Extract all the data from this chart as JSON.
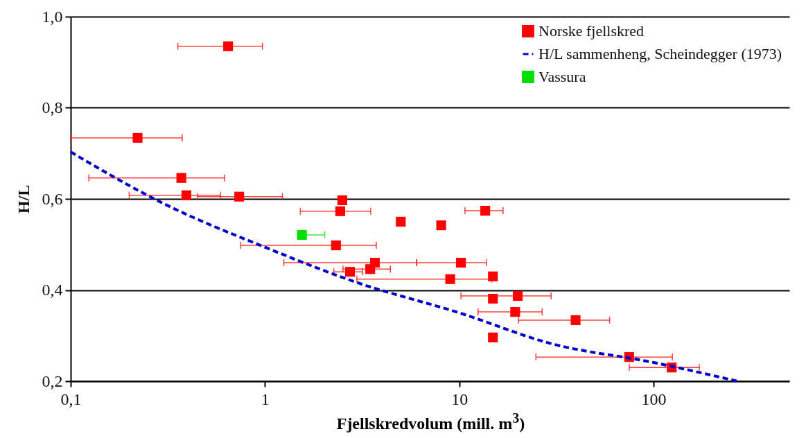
{
  "chart_data": {
    "type": "scatter",
    "xlabel": "Fjellskredvolum (mill. m$^{3}$)",
    "ylabel": "H/L",
    "log": "x",
    "grid": "y",
    "legend": "top right",
    "marker": "square",
    "xlim": [
      0.1,
      500
    ],
    "ylim": [
      0.2,
      1.0
    ],
    "xticks": [
      {
        "value": 0.1,
        "label": "0,1"
      },
      1,
      10,
      100
    ],
    "yticks": [
      {
        "value": 0.2,
        "label": "0,2"
      },
      {
        "value": 0.4,
        "label": "0,4"
      },
      {
        "value": 0.6,
        "label": "0,6"
      },
      {
        "value": 0.8,
        "label": "0,8"
      },
      {
        "value": 1.0,
        "label": "1,0"
      }
    ],
    "series": [
      {
        "name": "Norske fjellskred",
        "color": "#ff0000",
        "x": [
          0.646,
          0.221,
          0.371,
          0.394,
          0.737,
          2.5,
          2.44,
          13.6,
          5.0,
          8.07,
          2.32,
          3.68,
          10.2,
          3.48,
          2.74,
          8.98,
          14.9,
          20.0,
          14.9,
          19.4,
          39.7,
          14.9,
          74.9,
          124
        ],
        "values": [
          0.935,
          0.734,
          0.646,
          0.608,
          0.605,
          0.597,
          0.573,
          0.574,
          0.55,
          0.542,
          0.498,
          0.46,
          0.46,
          0.446,
          0.44,
          0.424,
          0.43,
          0.387,
          0.381,
          0.352,
          0.334,
          0.296,
          0.253,
          0.23
        ],
        "xerrors": [
          [
            0.356,
            0.97
          ],
          [
            0.1,
            0.375
          ],
          [
            0.124,
            0.62
          ],
          [
            0.2,
            0.59
          ],
          [
            0.45,
            1.23
          ],
          null,
          [
            1.52,
            3.5
          ],
          [
            10.7,
            16.8
          ],
          null,
          null,
          [
            0.75,
            3.74
          ],
          [
            1.25,
            6.04
          ],
          [
            6.04,
            13.8
          ],
          [
            2.52,
            4.42
          ],
          [
            2.26,
            3.18
          ],
          [
            2.97,
            14.7
          ],
          null,
          [
            10.2,
            29.7
          ],
          null,
          [
            12.5,
            26.7
          ],
          [
            20.2,
            59.4
          ],
          null,
          [
            24.8,
            125
          ],
          [
            75,
            172
          ]
        ]
      },
      {
        "name": "H/L sammenheng, Scheindegger (1973)",
        "type": "line",
        "color": "#0000cc",
        "line_style": "dashed",
        "marker": "none",
        "x": [
          0.1,
          0.3,
          1,
          3,
          10,
          30,
          100,
          270
        ],
        "values": [
          0.703,
          0.59,
          0.494,
          0.416,
          0.35,
          0.282,
          0.241,
          0.2
        ]
      },
      {
        "name": "Vassura",
        "color": "#00e000",
        "x": [
          1.55
        ],
        "values": [
          0.521
        ],
        "xerrors": [
          [
            1.55,
            2.03
          ]
        ]
      }
    ]
  }
}
